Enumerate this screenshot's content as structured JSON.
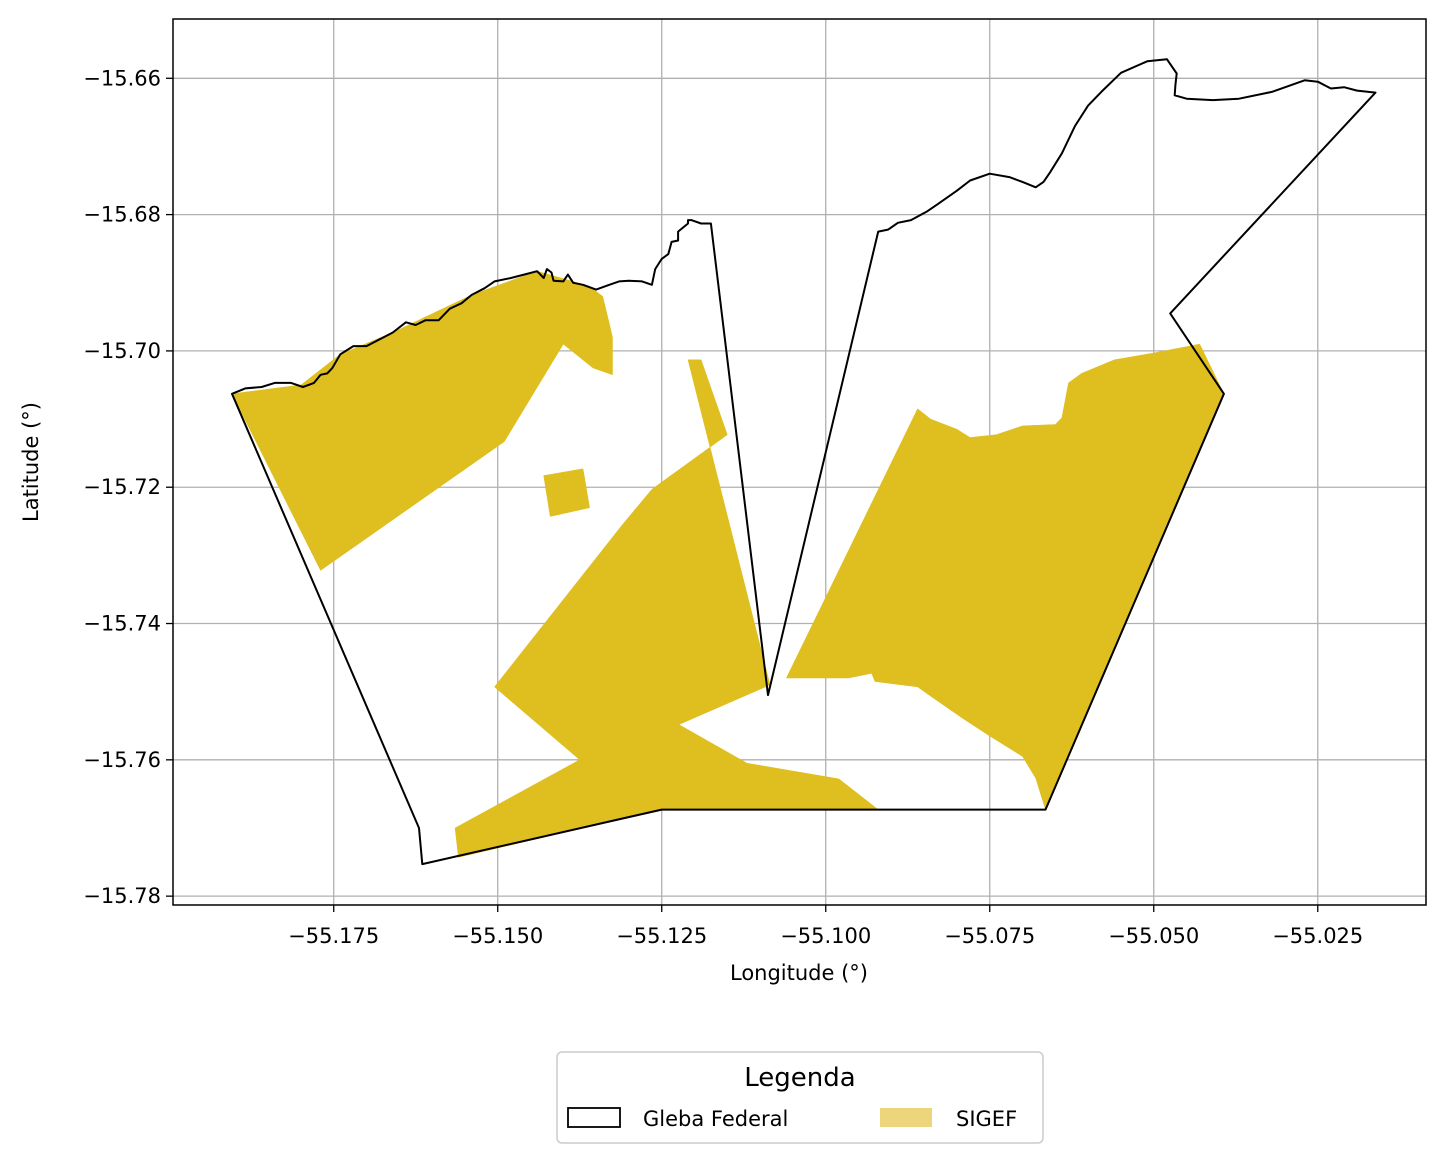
{
  "chart_data": {
    "type": "map",
    "xlabel": "Longitude (°)",
    "ylabel": "Latitude (°)",
    "xlim": [
      -55.1995,
      -55.0085
    ],
    "ylim": [
      -15.7813,
      -15.6513
    ],
    "x_ticks": [
      -55.175,
      -55.15,
      -55.125,
      -55.1,
      -55.075,
      -55.05,
      -55.025
    ],
    "x_tick_labels": [
      "−55.175",
      "−55.150",
      "−55.125",
      "−55.100",
      "−55.075",
      "−55.050",
      "−55.025"
    ],
    "y_ticks": [
      -15.66,
      -15.68,
      -15.7,
      -15.72,
      -15.74,
      -15.76,
      -15.78
    ],
    "y_tick_labels": [
      "−15.66",
      "−15.68",
      "−15.70",
      "−15.72",
      "−15.74",
      "−15.76",
      "−15.78"
    ],
    "grid": true,
    "legend": {
      "title": "Legenda",
      "placement": "bottom-center",
      "entries": [
        {
          "label": "Gleba Federal",
          "style": "outline"
        },
        {
          "label": "SIGEF",
          "style": "fill"
        }
      ]
    },
    "colors": {
      "gleba_outline": "#000000",
      "sigef_fill": "#dfbe1f",
      "sigef_legend_fill": "#ecd57a",
      "grid": "#b0b0b0"
    },
    "gleba_federal": [
      [
        -55.1905,
        -15.7063
      ],
      [
        -55.1885,
        -15.7055
      ],
      [
        -55.186,
        -15.7053
      ],
      [
        -55.184,
        -15.7047
      ],
      [
        -55.1815,
        -15.7047
      ],
      [
        -55.1797,
        -15.7053
      ],
      [
        -55.178,
        -15.7047
      ],
      [
        -55.177,
        -15.7035
      ],
      [
        -55.176,
        -15.7033
      ],
      [
        -55.1752,
        -15.7025
      ],
      [
        -55.174,
        -15.7005
      ],
      [
        -55.172,
        -15.6993
      ],
      [
        -55.17,
        -15.6993
      ],
      [
        -55.168,
        -15.6983
      ],
      [
        -55.166,
        -15.6973
      ],
      [
        -55.164,
        -15.6958
      ],
      [
        -55.1625,
        -15.6962
      ],
      [
        -55.161,
        -15.6955
      ],
      [
        -55.159,
        -15.6955
      ],
      [
        -55.1573,
        -15.6938
      ],
      [
        -55.1555,
        -15.693
      ],
      [
        -55.154,
        -15.6918
      ],
      [
        -55.152,
        -15.6908
      ],
      [
        -55.1505,
        -15.6898
      ],
      [
        -55.148,
        -15.6893
      ],
      [
        -55.146,
        -15.6888
      ],
      [
        -55.144,
        -15.6883
      ],
      [
        -55.143,
        -15.6893
      ],
      [
        -55.1425,
        -15.688
      ],
      [
        -55.1418,
        -15.6885
      ],
      [
        -55.1415,
        -15.6897
      ],
      [
        -55.14,
        -15.6898
      ],
      [
        -55.1393,
        -15.6888
      ],
      [
        -55.1385,
        -15.69
      ],
      [
        -55.137,
        -15.6903
      ],
      [
        -55.135,
        -15.691
      ],
      [
        -55.133,
        -15.6903
      ],
      [
        -55.1315,
        -15.6898
      ],
      [
        -55.13,
        -15.6897
      ],
      [
        -55.128,
        -15.6898
      ],
      [
        -55.1265,
        -15.6903
      ],
      [
        -55.126,
        -15.688
      ],
      [
        -55.125,
        -15.6865
      ],
      [
        -55.124,
        -15.6858
      ],
      [
        -55.1235,
        -15.684
      ],
      [
        -55.1225,
        -15.6838
      ],
      [
        -55.1225,
        -15.6825
      ],
      [
        -55.121,
        -15.6813
      ],
      [
        -55.121,
        -15.6808
      ],
      [
        -55.1205,
        -15.6808
      ],
      [
        -55.119,
        -15.6813
      ],
      [
        -55.1185,
        -15.6813
      ],
      [
        -55.1175,
        -15.6813
      ],
      [
        -55.1088,
        -15.7505
      ],
      [
        -55.092,
        -15.6825
      ],
      [
        -55.0905,
        -15.6822
      ],
      [
        -55.089,
        -15.6812
      ],
      [
        -55.087,
        -15.6808
      ],
      [
        -55.0845,
        -15.6795
      ],
      [
        -55.083,
        -15.6785
      ],
      [
        -55.08,
        -15.6765
      ],
      [
        -55.078,
        -15.675
      ],
      [
        -55.075,
        -15.674
      ],
      [
        -55.072,
        -15.6745
      ],
      [
        -55.07,
        -15.6752
      ],
      [
        -55.068,
        -15.676
      ],
      [
        -55.0668,
        -15.6752
      ],
      [
        -55.0658,
        -15.6738
      ],
      [
        -55.064,
        -15.671
      ],
      [
        -55.062,
        -15.667
      ],
      [
        -55.06,
        -15.664
      ],
      [
        -55.058,
        -15.662
      ],
      [
        -55.055,
        -15.6592
      ],
      [
        -55.051,
        -15.6575
      ],
      [
        -55.048,
        -15.6572
      ],
      [
        -55.0465,
        -15.6593
      ],
      [
        -55.0467,
        -15.661
      ],
      [
        -55.0468,
        -15.6625
      ],
      [
        -55.045,
        -15.663
      ],
      [
        -55.041,
        -15.6632
      ],
      [
        -55.037,
        -15.663
      ],
      [
        -55.032,
        -15.662
      ],
      [
        -55.027,
        -15.6603
      ],
      [
        -55.025,
        -15.6605
      ],
      [
        -55.023,
        -15.6615
      ],
      [
        -55.021,
        -15.6613
      ],
      [
        -55.019,
        -15.6618
      ],
      [
        -55.0162,
        -15.6621
      ],
      [
        -55.0475,
        -15.6945
      ],
      [
        -55.0393,
        -15.7063
      ],
      [
        -55.0665,
        -15.7673
      ],
      [
        -55.125,
        -15.7673
      ],
      [
        -55.1615,
        -15.7753
      ],
      [
        -55.162,
        -15.77
      ],
      [
        -55.1905,
        -15.7063
      ]
    ],
    "sigef": [
      [
        [
          -55.1905,
          -15.7063
        ],
        [
          -55.18,
          -15.705
        ],
        [
          -55.174,
          -15.7005
        ],
        [
          -55.166,
          -15.6973
        ],
        [
          -55.154,
          -15.6918
        ],
        [
          -55.144,
          -15.6883
        ],
        [
          -55.136,
          -15.6905
        ],
        [
          -55.134,
          -15.692
        ],
        [
          -55.133,
          -15.696
        ],
        [
          -55.1325,
          -15.698
        ],
        [
          -55.1325,
          -15.7035
        ],
        [
          -55.1355,
          -15.7025
        ],
        [
          -55.14,
          -15.699
        ],
        [
          -55.149,
          -15.7133
        ],
        [
          -55.177,
          -15.7322
        ]
      ],
      [
        [
          -55.143,
          -15.7183
        ],
        [
          -55.137,
          -15.7173
        ],
        [
          -55.136,
          -15.723
        ],
        [
          -55.142,
          -15.7243
        ]
      ],
      [
        [
          -55.121,
          -15.7013
        ],
        [
          -55.119,
          -15.7013
        ],
        [
          -55.115,
          -15.7123
        ],
        [
          -55.1265,
          -15.7203
        ],
        [
          -55.131,
          -15.7255
        ],
        [
          -55.1505,
          -15.7493
        ],
        [
          -55.1375,
          -15.76
        ],
        [
          -55.1565,
          -15.77
        ],
        [
          -55.156,
          -15.7743
        ],
        [
          -55.125,
          -15.7673
        ],
        [
          -55.092,
          -15.7673
        ],
        [
          -55.098,
          -15.7628
        ],
        [
          -55.112,
          -15.7605
        ],
        [
          -55.123,
          -15.7545
        ],
        [
          -55.1235,
          -15.7553
        ],
        [
          -55.1085,
          -15.749
        ]
      ],
      [
        [
          -55.106,
          -15.748
        ],
        [
          -55.0965,
          -15.748
        ],
        [
          -55.093,
          -15.7473
        ],
        [
          -55.0925,
          -15.7485
        ],
        [
          -55.086,
          -15.7493
        ],
        [
          -55.0838,
          -15.7508
        ],
        [
          -55.079,
          -15.754
        ],
        [
          -55.075,
          -15.7565
        ],
        [
          -55.07,
          -15.7595
        ],
        [
          -55.068,
          -15.7627
        ],
        [
          -55.0665,
          -15.7673
        ],
        [
          -55.0393,
          -15.7063
        ],
        [
          -55.043,
          -15.699
        ],
        [
          -55.05,
          -15.7003
        ],
        [
          -55.056,
          -15.7013
        ],
        [
          -55.061,
          -15.7033
        ],
        [
          -55.063,
          -15.7047
        ],
        [
          -55.064,
          -15.7098
        ],
        [
          -55.065,
          -15.7108
        ],
        [
          -55.07,
          -15.711
        ],
        [
          -55.074,
          -15.7123
        ],
        [
          -55.078,
          -15.7127
        ],
        [
          -55.08,
          -15.7115
        ],
        [
          -55.084,
          -15.71
        ],
        [
          -55.086,
          -15.7085
        ]
      ]
    ]
  }
}
